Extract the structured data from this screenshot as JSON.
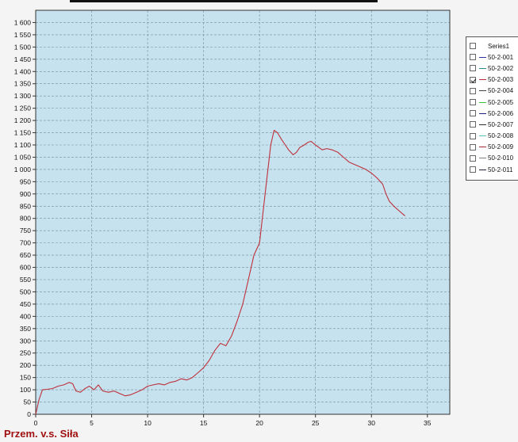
{
  "footer": {
    "title": "Przem. v.s. Siła"
  },
  "chart_data": {
    "type": "line",
    "title": "",
    "xlabel": "",
    "ylabel": "",
    "xlim": [
      0,
      37
    ],
    "ylim": [
      0,
      1650
    ],
    "x_ticks": [
      0,
      5,
      10,
      15,
      20,
      25,
      30,
      35
    ],
    "y_ticks": [
      0,
      50,
      100,
      150,
      200,
      250,
      300,
      350,
      400,
      450,
      500,
      550,
      600,
      650,
      700,
      750,
      800,
      850,
      900,
      950,
      1000,
      1050,
      1100,
      1150,
      1200,
      1250,
      1300,
      1350,
      1400,
      1450,
      1500,
      1550,
      1600
    ],
    "y_tick_labels": [
      "0",
      "50",
      "100",
      "150",
      "200",
      "250",
      "300",
      "350",
      "400",
      "450",
      "500",
      "550",
      "600",
      "650",
      "700",
      "750",
      "800",
      "850",
      "900",
      "950",
      "1 000",
      "1 050",
      "1 100",
      "1 150",
      "1 200",
      "1 250",
      "1 300",
      "1 350",
      "1 400",
      "1 450",
      "1 500",
      "1 550",
      "1 600"
    ],
    "grid": true,
    "plot_background": "#c5e2ee",
    "legend_position": "right",
    "legend": [
      {
        "name": "Series1",
        "color": "",
        "checked": false
      },
      {
        "name": "50-2-001",
        "color": "#3030a0",
        "checked": false
      },
      {
        "name": "50-2-002",
        "color": "#2a8a8a",
        "checked": false
      },
      {
        "name": "50-2-003",
        "color": "#c0303a",
        "checked": true
      },
      {
        "name": "50-2-004",
        "color": "#404040",
        "checked": false
      },
      {
        "name": "50-2-005",
        "color": "#40c040",
        "checked": false
      },
      {
        "name": "50-2-006",
        "color": "#202080",
        "checked": false
      },
      {
        "name": "50-2-007",
        "color": "#303030",
        "checked": false
      },
      {
        "name": "50-2-008",
        "color": "#60c0c0",
        "checked": false
      },
      {
        "name": "50-2-009",
        "color": "#a03030",
        "checked": false
      },
      {
        "name": "50-2-010",
        "color": "#808080",
        "checked": false
      },
      {
        "name": "50-2-011",
        "color": "#202040",
        "checked": false
      }
    ],
    "series": [
      {
        "name": "50-2-003",
        "color": "#c0303a",
        "x": [
          0,
          0.3,
          0.6,
          1.0,
          1.5,
          2.0,
          2.5,
          3.0,
          3.3,
          3.6,
          4.0,
          4.4,
          4.8,
          5.2,
          5.6,
          6.0,
          6.5,
          7.0,
          7.5,
          8.0,
          8.5,
          9.0,
          9.5,
          10.0,
          10.5,
          11.0,
          11.5,
          12.0,
          12.5,
          13.0,
          13.5,
          14.0,
          14.5,
          15.0,
          15.5,
          16.0,
          16.5,
          17.0,
          17.5,
          18.0,
          18.5,
          19.0,
          19.5,
          20.0,
          20.5,
          21.0,
          21.3,
          21.6,
          22.0,
          22.3,
          22.6,
          23.0,
          23.3,
          23.6,
          24.0,
          24.3,
          24.6,
          25.0,
          25.3,
          25.6,
          26.0,
          26.5,
          27.0,
          27.5,
          28.0,
          28.5,
          29.0,
          29.5,
          30.0,
          30.5,
          31.0,
          31.3,
          31.6,
          32.0,
          32.5,
          33.0
        ],
        "y": [
          0,
          60,
          100,
          102,
          105,
          115,
          120,
          130,
          125,
          95,
          90,
          105,
          115,
          100,
          120,
          95,
          90,
          95,
          85,
          75,
          80,
          90,
          100,
          115,
          120,
          125,
          120,
          130,
          135,
          145,
          140,
          150,
          170,
          190,
          220,
          260,
          290,
          280,
          320,
          380,
          450,
          550,
          650,
          700,
          900,
          1100,
          1160,
          1150,
          1120,
          1100,
          1080,
          1060,
          1070,
          1090,
          1100,
          1110,
          1115,
          1100,
          1090,
          1080,
          1085,
          1080,
          1070,
          1050,
          1030,
          1020,
          1010,
          1000,
          985,
          965,
          940,
          900,
          870,
          850,
          830,
          810
        ]
      }
    ]
  }
}
